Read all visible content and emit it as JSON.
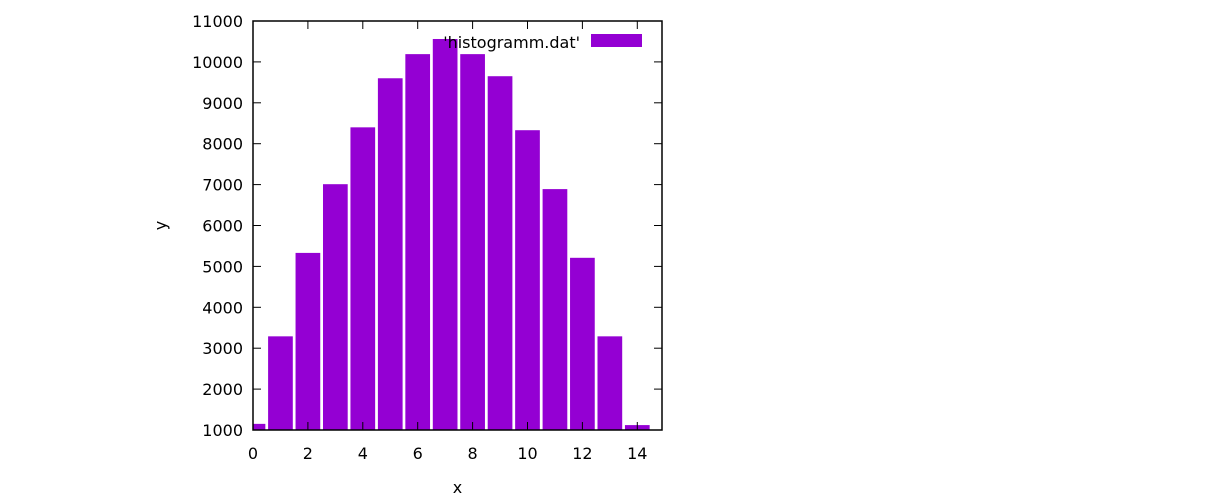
{
  "chart_data": {
    "type": "bar",
    "xlabel": "x",
    "ylabel": "y",
    "x": [
      0,
      1,
      2,
      3,
      4,
      5,
      6,
      7,
      8,
      9,
      10,
      11,
      12,
      13,
      14
    ],
    "values": [
      1150,
      3290,
      5330,
      7010,
      8400,
      9600,
      10190,
      10560,
      10190,
      9650,
      8330,
      6890,
      5210,
      3290,
      1120
    ],
    "series": [
      {
        "name": "'histogramm.dat'",
        "color": "#9400d3"
      }
    ],
    "xlim": [
      0,
      14.9
    ],
    "ylim": [
      1000,
      11000
    ],
    "xticks": [
      "0",
      "2",
      "4",
      "6",
      "8",
      "10",
      "12",
      "14"
    ],
    "yticks": [
      "1000",
      "2000",
      "3000",
      "4000",
      "5000",
      "6000",
      "7000",
      "8000",
      "9000",
      "10000",
      "11000"
    ],
    "bar_width": 0.9,
    "grid": false,
    "legend_position": "top-right",
    "axis_color": "#000000"
  }
}
